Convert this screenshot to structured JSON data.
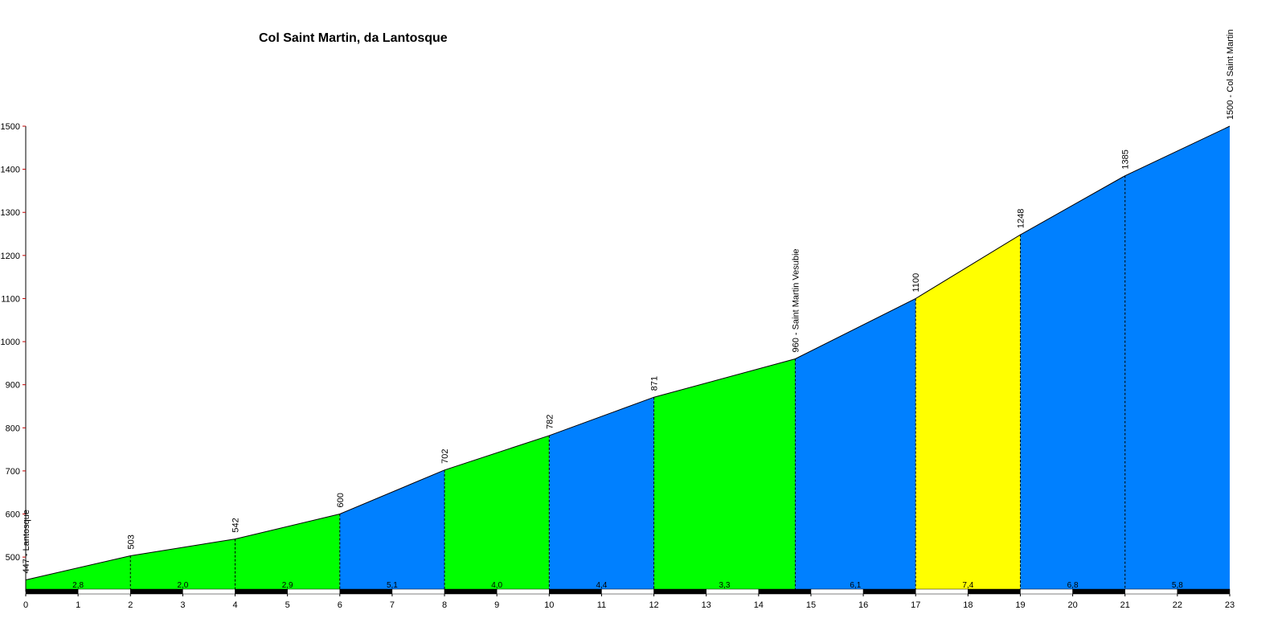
{
  "chart_data": {
    "type": "area",
    "title": "Col Saint Martin, da Lantosque",
    "xlabel": "",
    "ylabel": "",
    "xlim": [
      0,
      23
    ],
    "ylim": [
      420,
      1500
    ],
    "x_ticks": [
      0,
      1,
      2,
      3,
      4,
      5,
      6,
      7,
      8,
      9,
      10,
      11,
      12,
      13,
      14,
      15,
      16,
      17,
      18,
      19,
      20,
      21,
      22,
      23
    ],
    "y_ticks": [
      500,
      600,
      700,
      800,
      900,
      1000,
      1100,
      1200,
      1300,
      1400,
      1500
    ],
    "points": [
      {
        "x": 0,
        "y": 447,
        "label": "447 - Lantosque"
      },
      {
        "x": 2,
        "y": 503,
        "label": "503"
      },
      {
        "x": 4,
        "y": 542,
        "label": "542"
      },
      {
        "x": 6,
        "y": 600,
        "label": "600"
      },
      {
        "x": 8,
        "y": 702,
        "label": "702"
      },
      {
        "x": 10,
        "y": 782,
        "label": "782"
      },
      {
        "x": 12,
        "y": 871,
        "label": "871"
      },
      {
        "x": 14.7,
        "y": 960,
        "label": "960 - Saint Martin Vesubie"
      },
      {
        "x": 17,
        "y": 1100,
        "label": "1100"
      },
      {
        "x": 19,
        "y": 1248,
        "label": "1248"
      },
      {
        "x": 21,
        "y": 1385,
        "label": "1385"
      },
      {
        "x": 23,
        "y": 1500,
        "label": "1500 - Col Saint Martin"
      }
    ],
    "segments": [
      {
        "gradient": "2,8",
        "color": "#00ff00"
      },
      {
        "gradient": "2,0",
        "color": "#00ff00"
      },
      {
        "gradient": "2,9",
        "color": "#00ff00"
      },
      {
        "gradient": "5,1",
        "color": "#0080ff"
      },
      {
        "gradient": "4,0",
        "color": "#00ff00"
      },
      {
        "gradient": "4,4",
        "color": "#0080ff"
      },
      {
        "gradient": "3,3",
        "color": "#00ff00"
      },
      {
        "gradient": "6,1",
        "color": "#0080ff"
      },
      {
        "gradient": "7,4",
        "color": "#ffff00"
      },
      {
        "gradient": "6,8",
        "color": "#0080ff"
      },
      {
        "gradient": "5,8",
        "color": "#0080ff"
      }
    ],
    "grid": false,
    "legend": "none"
  }
}
